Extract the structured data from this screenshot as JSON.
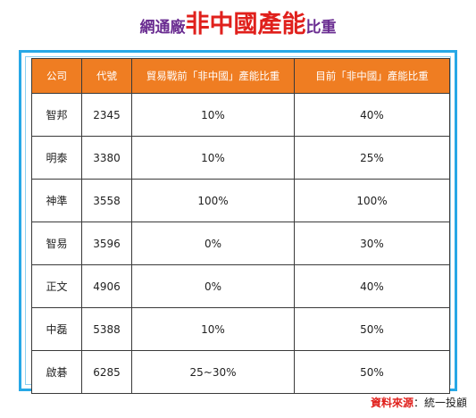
{
  "title": {
    "part1": "網通廠",
    "part2": "非中國產能",
    "part3": "比重"
  },
  "table": {
    "headers": [
      "公司",
      "代號",
      "貿易戰前「非中國」產能比重",
      "目前「非中國」產能比重"
    ],
    "rows": [
      [
        "智邦",
        "2345",
        "10%",
        "40%"
      ],
      [
        "明泰",
        "3380",
        "10%",
        "25%"
      ],
      [
        "神準",
        "3558",
        "100%",
        "100%"
      ],
      [
        "智易",
        "3596",
        "0%",
        "30%"
      ],
      [
        "正文",
        "4906",
        "0%",
        "40%"
      ],
      [
        "中磊",
        "5388",
        "10%",
        "50%"
      ],
      [
        "啟碁",
        "6285",
        "25~30%",
        "50%"
      ]
    ]
  },
  "source": {
    "label": "資料來源",
    "separator": "：",
    "value": "統一投顧"
  },
  "colors": {
    "title_purple": "#6a2c91",
    "title_red": "#e0201c",
    "header_orange": "#ef7d22",
    "frame_blue": "#27a8e6"
  }
}
